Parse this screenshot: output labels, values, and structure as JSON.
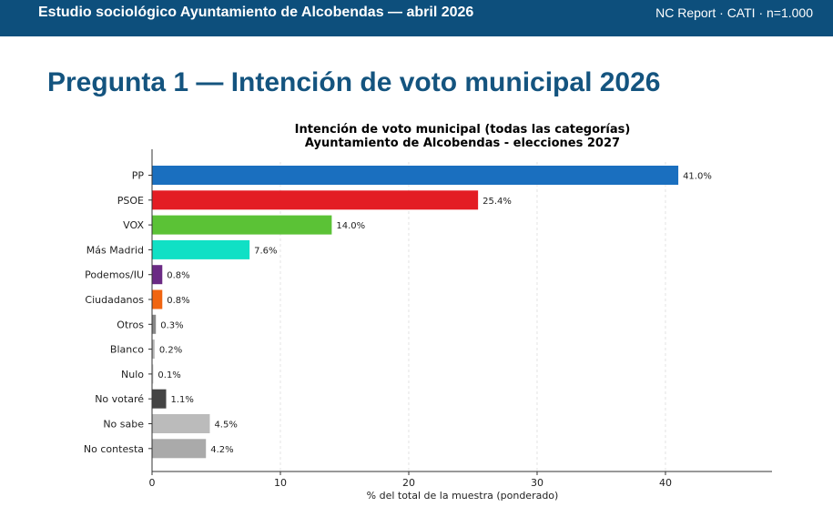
{
  "header": {
    "study_title": "Estudio sociológico Ayuntamiento de Alcobendas — abril 2026",
    "meta": "NC Report · CATI · n=1.000"
  },
  "page": {
    "title": "Pregunta 1 — Intención de voto municipal 2026"
  },
  "chart_data": {
    "type": "bar",
    "orientation": "horizontal",
    "title": "Intención de voto municipal (todas las categorías)",
    "subtitle": "Ayuntamiento de Alcobendas - elecciones 2027",
    "xlabel": "% del total de la muestra (ponderado)",
    "ylabel": "",
    "xlim": [
      0,
      48.3
    ],
    "xticks": [
      0,
      10,
      20,
      30,
      40
    ],
    "grid": "vertical dashed",
    "categories": [
      "PP",
      "PSOE",
      "VOX",
      "Más Madrid",
      "Podemos/IU",
      "Ciudadanos",
      "Otros",
      "Blanco",
      "Nulo",
      "No votaré",
      "No sabe",
      "No contesta"
    ],
    "values": [
      41.0,
      25.4,
      14.0,
      7.6,
      0.8,
      0.8,
      0.3,
      0.2,
      0.1,
      1.1,
      4.5,
      4.2
    ],
    "labels": [
      "41.0%",
      "25.4%",
      "14.0%",
      "7.6%",
      "0.8%",
      "0.8%",
      "0.3%",
      "0.2%",
      "0.1%",
      "1.1%",
      "4.5%",
      "4.2%"
    ],
    "colors": [
      "#1a6fbf",
      "#e31d24",
      "#5bc236",
      "#10e0c5",
      "#6b2a84",
      "#f06511",
      "#888888",
      "#b5b5b5",
      "#cccccc",
      "#444444",
      "#bbbbbb",
      "#aaaaaa"
    ]
  }
}
